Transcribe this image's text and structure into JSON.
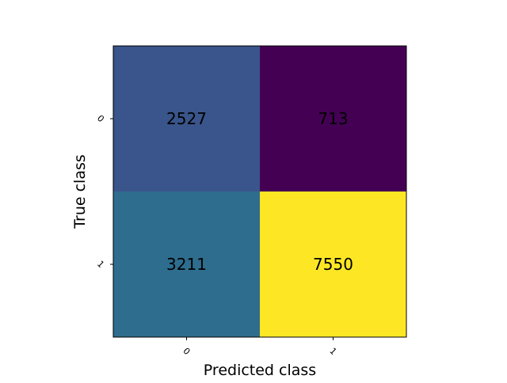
{
  "chart_data": {
    "type": "heatmap",
    "title": "",
    "xlabel": "Predicted class",
    "ylabel": "True class",
    "x_categories": [
      "0",
      "1"
    ],
    "y_categories": [
      "0",
      "1"
    ],
    "values": [
      [
        2527,
        713
      ],
      [
        3211,
        7550
      ]
    ],
    "colormap": "viridis",
    "colorbar": false,
    "grid": false,
    "cell_text_color": "#000000",
    "frame_color": "#000000"
  }
}
